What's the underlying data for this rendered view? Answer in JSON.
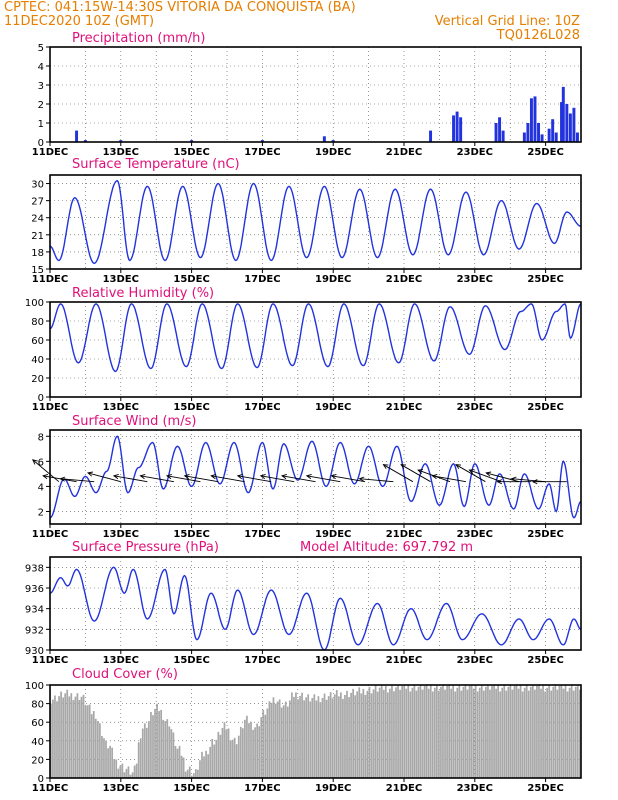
{
  "header": {
    "station_line": "CPTEC:   041:15W-14:30S   VITORIA DA CONQUISTA (BA)",
    "date_line": "11DEC2020  10Z (GMT)",
    "grid_note": "Vertical Grid Line: 10Z",
    "model_code": "TQ0126L028"
  },
  "colors": {
    "header": "#e67e00",
    "panel_title": "#e0107a",
    "series_line": "#2233dd",
    "cloud_fill": "#a8a8a8",
    "wind_arrow": "#000000"
  },
  "chart_data": [
    {
      "id": "precipitation",
      "type": "bar",
      "title": "Precipitation (mm/h)",
      "ylim": [
        0,
        5
      ],
      "yticks": [
        "0",
        "1",
        "2",
        "3",
        "4",
        "5"
      ],
      "xlabels": [
        "11DEC",
        "13DEC",
        "15DEC",
        "17DEC",
        "19DEC",
        "21DEC",
        "23DEC",
        "25DEC"
      ],
      "x_day_range": [
        0,
        15
      ],
      "series": [
        {
          "points": [
            [
              0.75,
              0.6
            ],
            [
              1.0,
              0.1
            ],
            [
              2.0,
              0.1
            ],
            [
              4.0,
              0.1
            ],
            [
              6.0,
              0.1
            ],
            [
              7.75,
              0.3
            ],
            [
              8.0,
              0.1
            ],
            [
              10.75,
              0.6
            ],
            [
              11.4,
              1.4
            ],
            [
              11.5,
              1.6
            ],
            [
              11.6,
              1.3
            ],
            [
              12.6,
              1.0
            ],
            [
              12.7,
              1.3
            ],
            [
              12.8,
              0.6
            ],
            [
              13.4,
              0.5
            ],
            [
              13.5,
              1.0
            ],
            [
              13.6,
              2.3
            ],
            [
              13.7,
              2.4
            ],
            [
              13.8,
              1.0
            ],
            [
              13.9,
              0.4
            ],
            [
              14.1,
              0.7
            ],
            [
              14.2,
              1.2
            ],
            [
              14.3,
              0.5
            ],
            [
              14.45,
              2.1
            ],
            [
              14.5,
              2.9
            ],
            [
              14.6,
              2.0
            ],
            [
              14.7,
              1.5
            ],
            [
              14.8,
              1.8
            ],
            [
              14.9,
              0.5
            ]
          ]
        }
      ],
      "grid": true
    },
    {
      "id": "temperature",
      "type": "line",
      "title": "Surface Temperature (nC)",
      "ylim": [
        15,
        31.5
      ],
      "yticks": [
        "15",
        "18",
        "21",
        "24",
        "27",
        "30"
      ],
      "xlabels": [
        "11DEC",
        "13DEC",
        "15DEC",
        "17DEC",
        "19DEC",
        "21DEC",
        "23DEC",
        "25DEC"
      ],
      "series": [
        {
          "extrema": [
            [
              0.0,
              19.0
            ],
            [
              0.25,
              16.5
            ],
            [
              0.7,
              27.5
            ],
            [
              1.25,
              16.0
            ],
            [
              1.9,
              30.5
            ],
            [
              2.25,
              16.5
            ],
            [
              2.75,
              29.5
            ],
            [
              3.25,
              16.5
            ],
            [
              3.75,
              29.5
            ],
            [
              4.25,
              17.0
            ],
            [
              4.75,
              30.0
            ],
            [
              5.25,
              16.5
            ],
            [
              5.75,
              30.0
            ],
            [
              6.25,
              16.5
            ],
            [
              6.75,
              29.5
            ],
            [
              7.25,
              17.0
            ],
            [
              7.75,
              29.5
            ],
            [
              8.25,
              17.0
            ],
            [
              8.75,
              29.0
            ],
            [
              9.25,
              17.0
            ],
            [
              9.75,
              29.0
            ],
            [
              10.25,
              17.5
            ],
            [
              10.75,
              29.0
            ],
            [
              11.25,
              17.5
            ],
            [
              11.75,
              28.5
            ],
            [
              12.25,
              17.5
            ],
            [
              12.75,
              27.0
            ],
            [
              13.25,
              18.5
            ],
            [
              13.75,
              26.5
            ],
            [
              14.25,
              19.5
            ],
            [
              14.6,
              25.0
            ],
            [
              15.0,
              22.5
            ]
          ]
        }
      ],
      "grid": true
    },
    {
      "id": "humidity",
      "type": "line",
      "title": "Relative Humidity (%)",
      "ylim": [
        0,
        100
      ],
      "yticks": [
        "0",
        "20",
        "40",
        "60",
        "80",
        "100"
      ],
      "xlabels": [
        "11DEC",
        "13DEC",
        "15DEC",
        "17DEC",
        "19DEC",
        "21DEC",
        "23DEC",
        "25DEC"
      ],
      "series": [
        {
          "extrema": [
            [
              0.0,
              72.0
            ],
            [
              0.3,
              98.0
            ],
            [
              0.8,
              36.0
            ],
            [
              1.3,
              98.0
            ],
            [
              1.85,
              27.0
            ],
            [
              2.3,
              98.0
            ],
            [
              2.85,
              30.0
            ],
            [
              3.3,
              98.0
            ],
            [
              3.85,
              32.0
            ],
            [
              4.3,
              98.0
            ],
            [
              4.85,
              30.0
            ],
            [
              5.3,
              98.0
            ],
            [
              5.85,
              31.0
            ],
            [
              6.3,
              98.0
            ],
            [
              6.85,
              33.0
            ],
            [
              7.3,
              98.0
            ],
            [
              7.85,
              32.0
            ],
            [
              8.3,
              98.0
            ],
            [
              8.85,
              33.0
            ],
            [
              9.3,
              98.0
            ],
            [
              9.85,
              36.0
            ],
            [
              10.3,
              98.0
            ],
            [
              10.85,
              38.0
            ],
            [
              11.3,
              95.0
            ],
            [
              11.85,
              45.0
            ],
            [
              12.3,
              96.0
            ],
            [
              12.85,
              50.0
            ],
            [
              13.3,
              90.0
            ],
            [
              13.6,
              98.0
            ],
            [
              13.9,
              60.0
            ],
            [
              14.3,
              90.0
            ],
            [
              14.55,
              98.0
            ],
            [
              14.7,
              62.0
            ],
            [
              15.0,
              98.0
            ]
          ]
        }
      ],
      "grid": true
    },
    {
      "id": "wind",
      "type": "line",
      "title": "Surface Wind (m/s)",
      "ylim": [
        1,
        8.5
      ],
      "yticks": [
        "2",
        "4",
        "6",
        "8"
      ],
      "xlabels": [
        "11DEC",
        "13DEC",
        "15DEC",
        "17DEC",
        "19DEC",
        "21DEC",
        "23DEC",
        "25DEC"
      ],
      "series": [
        {
          "extrema": [
            [
              0.0,
              1.5
            ],
            [
              0.4,
              4.6
            ],
            [
              0.7,
              3.2
            ],
            [
              1.0,
              4.8
            ],
            [
              1.3,
              3.5
            ],
            [
              1.6,
              5.2
            ],
            [
              1.9,
              8.0
            ],
            [
              2.2,
              3.5
            ],
            [
              2.5,
              5.5
            ],
            [
              2.9,
              7.5
            ],
            [
              3.2,
              3.8
            ],
            [
              3.6,
              7.2
            ],
            [
              4.0,
              4.0
            ],
            [
              4.4,
              7.5
            ],
            [
              4.8,
              4.2
            ],
            [
              5.2,
              7.5
            ],
            [
              5.6,
              3.5
            ],
            [
              6.0,
              7.5
            ],
            [
              6.3,
              3.8
            ],
            [
              6.6,
              7.4
            ],
            [
              7.0,
              4.5
            ],
            [
              7.4,
              7.6
            ],
            [
              7.8,
              4.0
            ],
            [
              8.2,
              7.5
            ],
            [
              8.6,
              4.2
            ],
            [
              9.0,
              7.2
            ],
            [
              9.4,
              4.0
            ],
            [
              9.8,
              7.2
            ],
            [
              10.2,
              2.8
            ],
            [
              10.6,
              5.8
            ],
            [
              11.0,
              2.5
            ],
            [
              11.4,
              5.8
            ],
            [
              11.7,
              2.4
            ],
            [
              12.0,
              5.8
            ],
            [
              12.4,
              2.5
            ],
            [
              12.7,
              5.0
            ],
            [
              13.1,
              2.2
            ],
            [
              13.4,
              5.0
            ],
            [
              13.8,
              2.2
            ],
            [
              14.1,
              4.2
            ],
            [
              14.3,
              2.0
            ],
            [
              14.5,
              6.0
            ],
            [
              14.8,
              1.5
            ],
            [
              15.0,
              2.8
            ]
          ]
        }
      ],
      "grid": true,
      "wind_arrows": [
        [
          0.25,
          -140
        ],
        [
          0.75,
          -170
        ],
        [
          1.25,
          -175
        ],
        [
          2.0,
          -165
        ],
        [
          2.75,
          -170
        ],
        [
          3.5,
          -170
        ],
        [
          4.25,
          -170
        ],
        [
          4.75,
          -170
        ],
        [
          5.5,
          -170
        ],
        [
          6.25,
          -170
        ],
        [
          6.9,
          -170
        ],
        [
          7.5,
          -170
        ],
        [
          8.2,
          -170
        ],
        [
          8.9,
          -170
        ],
        [
          9.7,
          -175
        ],
        [
          10.25,
          -150
        ],
        [
          10.75,
          -150
        ],
        [
          11.3,
          -160
        ],
        [
          11.75,
          -170
        ],
        [
          12.3,
          -150
        ],
        [
          12.75,
          -160
        ],
        [
          13.25,
          -165
        ],
        [
          13.6,
          -180
        ],
        [
          14.0,
          -175
        ],
        [
          14.6,
          -180
        ]
      ]
    },
    {
      "id": "pressure",
      "type": "line",
      "title": "Surface Pressure (hPa)",
      "annotation": "Model Altitude: 697.792 m",
      "ylim": [
        930,
        939
      ],
      "yticks": [
        "930",
        "932",
        "934",
        "936",
        "938"
      ],
      "xlabels": [
        "11DEC",
        "13DEC",
        "15DEC",
        "17DEC",
        "19DEC",
        "21DEC",
        "23DEC",
        "25DEC"
      ],
      "series": [
        {
          "extrema": [
            [
              0.0,
              935.5
            ],
            [
              0.3,
              937.0
            ],
            [
              0.5,
              936.2
            ],
            [
              0.75,
              937.8
            ],
            [
              1.25,
              932.8
            ],
            [
              1.8,
              938.0
            ],
            [
              2.1,
              935.5
            ],
            [
              2.35,
              937.8
            ],
            [
              2.75,
              933.0
            ],
            [
              3.25,
              937.8
            ],
            [
              3.5,
              933.5
            ],
            [
              3.8,
              937.2
            ],
            [
              4.15,
              931.0
            ],
            [
              4.55,
              935.5
            ],
            [
              4.95,
              932.0
            ],
            [
              5.3,
              935.8
            ],
            [
              5.75,
              931.5
            ],
            [
              6.25,
              935.8
            ],
            [
              6.75,
              931.5
            ],
            [
              7.25,
              935.5
            ],
            [
              7.75,
              930.0
            ],
            [
              8.2,
              935.0
            ],
            [
              8.7,
              930.5
            ],
            [
              9.25,
              934.5
            ],
            [
              9.7,
              930.5
            ],
            [
              10.2,
              934.0
            ],
            [
              10.65,
              931.0
            ],
            [
              11.2,
              934.5
            ],
            [
              11.65,
              931.0
            ],
            [
              12.2,
              933.5
            ],
            [
              12.75,
              930.5
            ],
            [
              13.25,
              933.0
            ],
            [
              13.65,
              931.0
            ],
            [
              14.1,
              933.0
            ],
            [
              14.5,
              930.5
            ],
            [
              14.8,
              933.0
            ],
            [
              15.0,
              932.0
            ]
          ]
        }
      ],
      "grid": true
    },
    {
      "id": "cloud",
      "type": "area",
      "title": "Cloud Cover (%)",
      "ylim": [
        0,
        100
      ],
      "yticks": [
        "0",
        "20",
        "40",
        "60",
        "80",
        "100"
      ],
      "xlabels": [
        "11DEC",
        "13DEC",
        "15DEC",
        "17DEC",
        "19DEC",
        "21DEC",
        "23DEC",
        "25DEC"
      ],
      "series": [
        {
          "extrema": [
            [
              0.0,
              85.0
            ],
            [
              0.4,
              90.0
            ],
            [
              0.8,
              88.0
            ],
            [
              1.2,
              70.0
            ],
            [
              1.6,
              35.0
            ],
            [
              1.9,
              15.0
            ],
            [
              2.1,
              10.0
            ],
            [
              2.3,
              5.0
            ],
            [
              2.6,
              55.0
            ],
            [
              3.0,
              75.0
            ],
            [
              3.3,
              60.0
            ],
            [
              3.6,
              30.0
            ],
            [
              3.85,
              10.0
            ],
            [
              4.05,
              5.0
            ],
            [
              4.3,
              25.0
            ],
            [
              4.6,
              40.0
            ],
            [
              4.9,
              55.0
            ],
            [
              5.2,
              40.0
            ],
            [
              5.5,
              62.0
            ],
            [
              5.8,
              55.0
            ],
            [
              6.0,
              70.0
            ],
            [
              6.3,
              85.0
            ],
            [
              6.6,
              78.0
            ],
            [
              6.9,
              90.0
            ],
            [
              7.4,
              85.0
            ],
            [
              7.8,
              88.0
            ],
            [
              8.2,
              90.0
            ],
            [
              8.6,
              92.0
            ],
            [
              9.0,
              95.0
            ],
            [
              9.5,
              97.0
            ],
            [
              10.0,
              98.0
            ],
            [
              11.0,
              98.0
            ],
            [
              12.0,
              98.0
            ],
            [
              13.0,
              98.0
            ],
            [
              14.0,
              98.0
            ],
            [
              15.0,
              98.0
            ]
          ]
        }
      ],
      "grid": true
    }
  ]
}
